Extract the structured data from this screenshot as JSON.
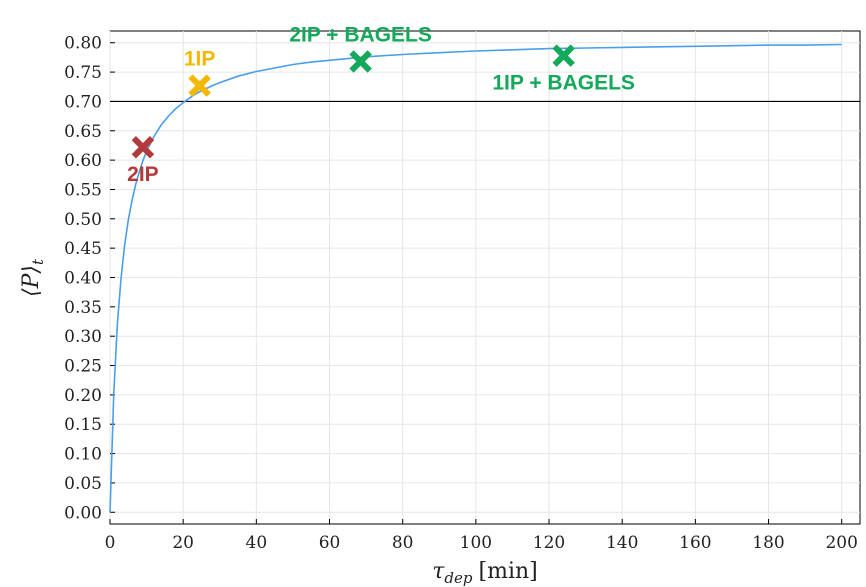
{
  "chart_data": {
    "type": "line",
    "xlabel": {
      "symbol": "τ",
      "subscript": "dep",
      "unit": "[min]"
    },
    "ylabel": {
      "text": "⟨P⟩",
      "subscript": "t"
    },
    "xlim": [
      0,
      205
    ],
    "ylim": [
      -0.02,
      0.82
    ],
    "xticks": [
      0,
      20,
      40,
      60,
      80,
      100,
      120,
      140,
      160,
      180,
      200
    ],
    "yticks": [
      0.0,
      0.05,
      0.1,
      0.15,
      0.2,
      0.25,
      0.3,
      0.35,
      0.4,
      0.45,
      0.5,
      0.55,
      0.6,
      0.65,
      0.7,
      0.75,
      0.8
    ],
    "grid": true,
    "hline": 0.7,
    "series": [
      {
        "color": "#4a9eea",
        "x": [
          0,
          1,
          2,
          3,
          4,
          5,
          6,
          7,
          8,
          9,
          10,
          12,
          14,
          16,
          18,
          20,
          22,
          24,
          26,
          28,
          30,
          35,
          40,
          45,
          50,
          55,
          60,
          65,
          70,
          80,
          90,
          100,
          110,
          120,
          130,
          140,
          150,
          160,
          170,
          180,
          190,
          200
        ],
        "y": [
          0.0,
          0.199,
          0.319,
          0.398,
          0.455,
          0.498,
          0.531,
          0.558,
          0.58,
          0.599,
          0.615,
          0.64,
          0.66,
          0.675,
          0.688,
          0.698,
          0.707,
          0.715,
          0.721,
          0.727,
          0.732,
          0.743,
          0.751,
          0.757,
          0.763,
          0.767,
          0.77,
          0.773,
          0.776,
          0.78,
          0.783,
          0.786,
          0.788,
          0.79,
          0.791,
          0.792,
          0.793,
          0.794,
          0.795,
          0.796,
          0.796,
          0.797
        ]
      }
    ],
    "markers": [
      {
        "label": "2IP",
        "x": 9,
        "y": 0.622,
        "color": "#b23a3a",
        "label_pos": "below"
      },
      {
        "label": "1IP",
        "x": 24.5,
        "y": 0.727,
        "color": "#f5b800",
        "label_pos": "above"
      },
      {
        "label": "2IP + BAGELS",
        "x": 68.5,
        "y": 0.768,
        "color": "#14a85a",
        "label_pos": "above"
      },
      {
        "label": "1IP + BAGELS",
        "x": 124,
        "y": 0.778,
        "color": "#14a85a",
        "label_pos": "below"
      }
    ]
  }
}
